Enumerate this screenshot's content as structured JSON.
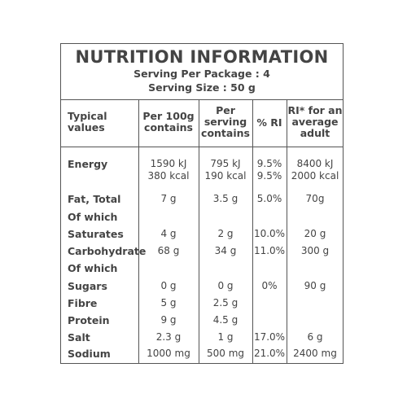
{
  "title": "NUTRITION INFORMATION",
  "serving_per_package": "Serving Per Package : 4",
  "serving_size": "Serving Size : 50 g",
  "headers": {
    "col0": [
      "Typical",
      "values"
    ],
    "col1": [
      "Per 100g",
      "contains"
    ],
    "col2": [
      "Per",
      "serving",
      "contains"
    ],
    "col3": [
      "% RI"
    ],
    "col4": [
      "RI* for an",
      "average",
      "adult"
    ]
  },
  "rows": [
    {
      "label": "Energy",
      "per100": "1590 kJ",
      "serving": "795 kJ",
      "ri": "9.5%",
      "adult": "8400 kJ"
    },
    {
      "label": "",
      "per100": "380 kcal",
      "serving": "190 kcal",
      "ri": "9.5%",
      "adult": "2000 kcal"
    },
    {
      "label": "Fat, Total",
      "per100": "7 g",
      "serving": "3.5 g",
      "ri": "5.0%",
      "adult": "70g"
    },
    {
      "label": "Of which",
      "per100": "",
      "serving": "",
      "ri": "",
      "adult": ""
    },
    {
      "label": "Saturates",
      "per100": "4 g",
      "serving": "2 g",
      "ri": "10.0%",
      "adult": "20 g"
    },
    {
      "label": "Carbohydrate",
      "per100": "68 g",
      "serving": "34 g",
      "ri": "11.0%",
      "adult": "300 g"
    },
    {
      "label": "Of which",
      "per100": "",
      "serving": "",
      "ri": "",
      "adult": ""
    },
    {
      "label": "Sugars",
      "per100": "0 g",
      "serving": "0 g",
      "ri": "0%",
      "adult": "90 g"
    },
    {
      "label": "Fibre",
      "per100": "5 g",
      "serving": "2.5 g",
      "ri": "",
      "adult": ""
    },
    {
      "label": "Protein",
      "per100": "9 g",
      "serving": "4.5 g",
      "ri": "",
      "adult": ""
    },
    {
      "label": "Salt",
      "per100": "2.3 g",
      "serving": "1 g",
      "ri": "17.0%",
      "adult": "6 g"
    },
    {
      "label": "Sodium",
      "per100": "1000 mg",
      "serving": "500 mg",
      "ri": "21.0%",
      "adult": "2400 mg"
    }
  ]
}
